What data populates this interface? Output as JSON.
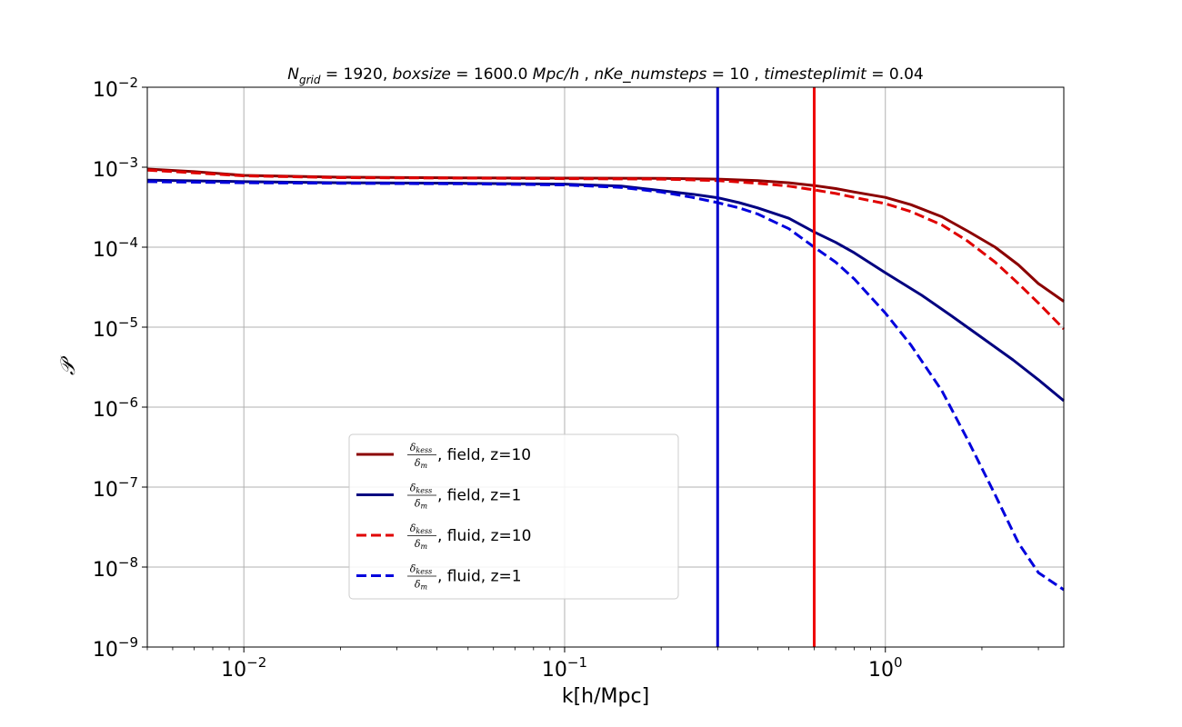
{
  "chart_data": {
    "type": "line",
    "title_parts": {
      "n_sym": "N",
      "n_sub": "grid",
      "n_val": " = 1920, ",
      "box": "boxsize",
      "box_val": " = 1600.0 ",
      "box_unit": "Mpc/h",
      "sep1": " , ",
      "steps": "nKe_numsteps",
      "steps_val": " = 10",
      "sep2": " , ",
      "limit": "timesteplimit",
      "limit_val": " = 0.04"
    },
    "xlabel": "k[h/Mpc]",
    "ylabel": "𝒫",
    "xscale": "log",
    "yscale": "log",
    "xlim": [
      0.005,
      3.6
    ],
    "ylim": [
      1e-09,
      0.01
    ],
    "grid": true,
    "legend_position": "lower-center-left",
    "x_ticks": [
      {
        "value": 0.01,
        "base": "10",
        "exp": "−2"
      },
      {
        "value": 0.1,
        "base": "10",
        "exp": "−1"
      },
      {
        "value": 1,
        "base": "10",
        "exp": "0"
      }
    ],
    "y_ticks": [
      {
        "value": 1e-09,
        "base": "10",
        "exp": "−9"
      },
      {
        "value": 1e-08,
        "base": "10",
        "exp": "−8"
      },
      {
        "value": 1e-07,
        "base": "10",
        "exp": "−7"
      },
      {
        "value": 1e-06,
        "base": "10",
        "exp": "−6"
      },
      {
        "value": 1e-05,
        "base": "10",
        "exp": "−5"
      },
      {
        "value": 0.0001,
        "base": "10",
        "exp": "−4"
      },
      {
        "value": 0.001,
        "base": "10",
        "exp": "−3"
      },
      {
        "value": 0.01,
        "base": "10",
        "exp": "−2"
      }
    ],
    "legend_frac": {
      "num": "δ",
      "num_sub": "kess",
      "den": "δ",
      "den_sub": "m"
    },
    "series": [
      {
        "name": ", field, z=10",
        "color": "#8b0000",
        "style": "solid",
        "points": [
          [
            0.005,
            0.00095
          ],
          [
            0.007,
            0.00088
          ],
          [
            0.01,
            0.00079
          ],
          [
            0.02,
            0.00075
          ],
          [
            0.05,
            0.000735
          ],
          [
            0.1,
            0.00073
          ],
          [
            0.2,
            0.000725
          ],
          [
            0.3,
            0.00071
          ],
          [
            0.4,
            0.00068
          ],
          [
            0.5,
            0.00064
          ],
          [
            0.6,
            0.00059
          ],
          [
            0.7,
            0.00054
          ],
          [
            0.8,
            0.00049
          ],
          [
            1.0,
            0.00042
          ],
          [
            1.2,
            0.00034
          ],
          [
            1.5,
            0.00024
          ],
          [
            1.8,
            0.00016
          ],
          [
            2.2,
            0.0001
          ],
          [
            2.6,
            6e-05
          ],
          [
            3.0,
            3.5e-05
          ],
          [
            3.6,
            2.1e-05
          ]
        ]
      },
      {
        "name": ", field, z=1",
        "color": "#000080",
        "style": "solid",
        "points": [
          [
            0.005,
            0.00069
          ],
          [
            0.007,
            0.000675
          ],
          [
            0.01,
            0.00066
          ],
          [
            0.02,
            0.00064
          ],
          [
            0.05,
            0.00063
          ],
          [
            0.1,
            0.000615
          ],
          [
            0.15,
            0.00058
          ],
          [
            0.2,
            0.00051
          ],
          [
            0.25,
            0.00046
          ],
          [
            0.3,
            0.000415
          ],
          [
            0.35,
            0.00036
          ],
          [
            0.4,
            0.00031
          ],
          [
            0.5,
            0.00023
          ],
          [
            0.6,
            0.000155
          ],
          [
            0.7,
            0.000115
          ],
          [
            0.8,
            8.5e-05
          ],
          [
            1.0,
            4.8e-05
          ],
          [
            1.3,
            2.5e-05
          ],
          [
            1.6,
            1.4e-05
          ],
          [
            2.0,
            7.4e-06
          ],
          [
            2.5,
            3.9e-06
          ],
          [
            3.0,
            2.2e-06
          ],
          [
            3.6,
            1.2e-06
          ]
        ]
      },
      {
        "name": ", fluid, z=10",
        "color": "#e00000",
        "style": "dashed",
        "points": [
          [
            0.005,
            0.00092
          ],
          [
            0.007,
            0.00085
          ],
          [
            0.01,
            0.00078
          ],
          [
            0.02,
            0.00074
          ],
          [
            0.05,
            0.00073
          ],
          [
            0.1,
            0.00072
          ],
          [
            0.2,
            0.00071
          ],
          [
            0.3,
            0.00068
          ],
          [
            0.4,
            0.00063
          ],
          [
            0.5,
            0.00058
          ],
          [
            0.6,
            0.00052
          ],
          [
            0.7,
            0.00047
          ],
          [
            0.8,
            0.00042
          ],
          [
            1.0,
            0.00035
          ],
          [
            1.2,
            0.00028
          ],
          [
            1.5,
            0.00019
          ],
          [
            1.8,
            0.00012
          ],
          [
            2.2,
            6.5e-05
          ],
          [
            2.6,
            3.5e-05
          ],
          [
            3.0,
            2e-05
          ],
          [
            3.6,
            9.5e-06
          ]
        ]
      },
      {
        "name": ", fluid, z=1",
        "color": "#0000dd",
        "style": "dashed",
        "points": [
          [
            0.005,
            0.00066
          ],
          [
            0.007,
            0.00065
          ],
          [
            0.01,
            0.00064
          ],
          [
            0.02,
            0.00063
          ],
          [
            0.05,
            0.00062
          ],
          [
            0.1,
            0.0006
          ],
          [
            0.15,
            0.00056
          ],
          [
            0.2,
            0.00049
          ],
          [
            0.25,
            0.00042
          ],
          [
            0.3,
            0.00036
          ],
          [
            0.35,
            0.00031
          ],
          [
            0.4,
            0.00026
          ],
          [
            0.5,
            0.00017
          ],
          [
            0.6,
            0.0001
          ],
          [
            0.7,
            6.5e-05
          ],
          [
            0.8,
            4e-05
          ],
          [
            1.0,
            1.5e-05
          ],
          [
            1.2,
            6e-06
          ],
          [
            1.5,
            1.6e-06
          ],
          [
            1.8,
            4e-07
          ],
          [
            2.2,
            8e-08
          ],
          [
            2.6,
            2e-08
          ],
          [
            3.0,
            8.5e-09
          ],
          [
            3.6,
            5.2e-09
          ]
        ]
      }
    ],
    "vlines": [
      {
        "x": 0.3,
        "color": "#0000cc"
      },
      {
        "x": 0.6,
        "color": "#ee0000"
      }
    ]
  }
}
